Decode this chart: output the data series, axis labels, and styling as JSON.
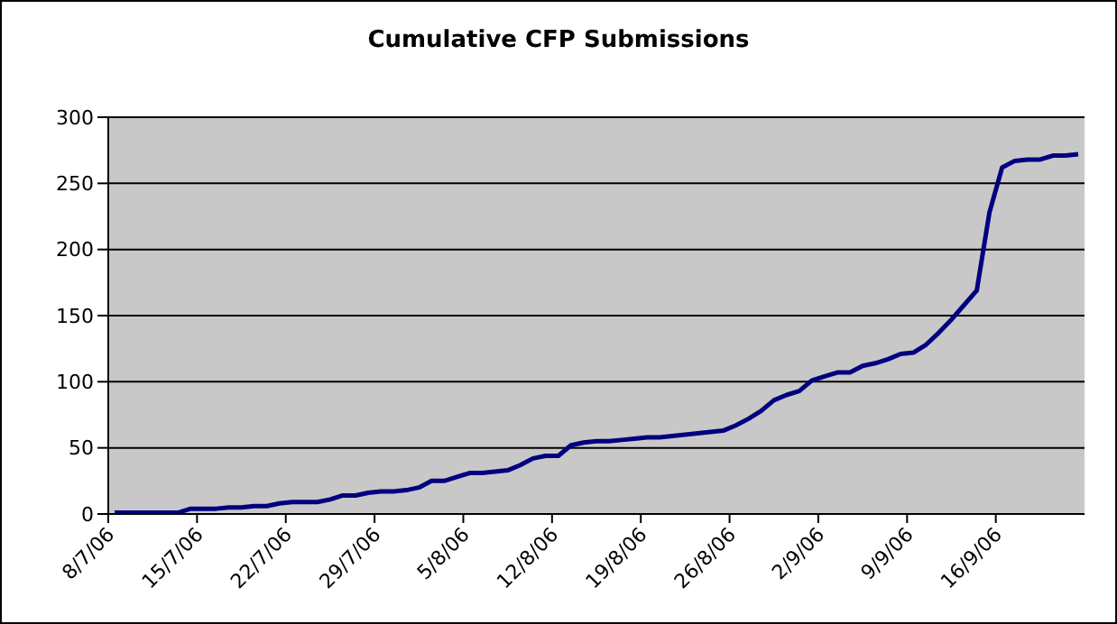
{
  "chart_data": {
    "type": "line",
    "title": "Cumulative CFP Submissions",
    "categories": [
      "8/7/06",
      null,
      null,
      null,
      null,
      null,
      null,
      "15/7/06",
      null,
      null,
      null,
      null,
      null,
      null,
      "22/7/06",
      null,
      null,
      null,
      null,
      null,
      null,
      "29/7/06",
      null,
      null,
      null,
      null,
      null,
      null,
      "5/8/06",
      null,
      null,
      null,
      null,
      null,
      null,
      "12/8/06",
      null,
      null,
      null,
      null,
      null,
      null,
      "19/8/06",
      null,
      null,
      null,
      null,
      null,
      null,
      "26/8/06",
      null,
      null,
      null,
      null,
      null,
      null,
      "2/9/06",
      null,
      null,
      null,
      null,
      null,
      null,
      "9/9/06",
      null,
      null,
      null,
      null,
      null,
      null,
      "16/9/06",
      null,
      null,
      null,
      null,
      null,
      null
    ],
    "series": [
      {
        "color": "#000080",
        "values": [
          1,
          1,
          1,
          1,
          1,
          1,
          4,
          4,
          4,
          5,
          5,
          6,
          6,
          8,
          9,
          9,
          9,
          11,
          14,
          14,
          16,
          17,
          17,
          18,
          20,
          25,
          25,
          28,
          31,
          31,
          32,
          33,
          37,
          42,
          44,
          44,
          52,
          54,
          55,
          55,
          56,
          57,
          58,
          58,
          59,
          60,
          61,
          62,
          63,
          67,
          72,
          78,
          86,
          90,
          93,
          101,
          104,
          107,
          107,
          112,
          114,
          117,
          121,
          122,
          128,
          137,
          147,
          158,
          169,
          228,
          262,
          267,
          268,
          268,
          271,
          271,
          272
        ]
      }
    ],
    "ylim": [
      0,
      300
    ],
    "yticks": [
      0,
      50,
      100,
      150,
      200,
      250,
      300
    ],
    "grid": "y",
    "legend": false,
    "marker": "none",
    "line_style": "solid"
  }
}
